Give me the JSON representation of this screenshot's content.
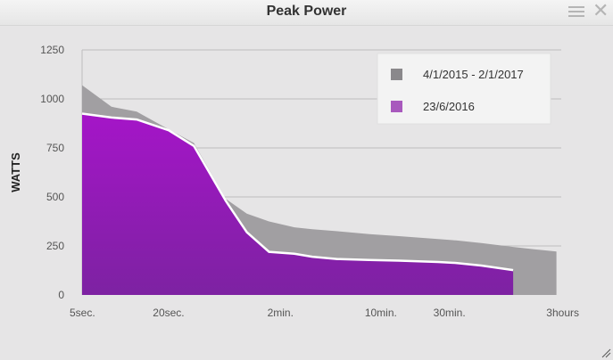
{
  "window": {
    "title": "Peak Power",
    "menu_icon": "hamburger-menu-icon",
    "close_icon": "close-icon",
    "close_glyph": "✕",
    "resize_icon": "resize-grip-icon"
  },
  "chart_data": {
    "type": "area",
    "title": "Peak Power",
    "xlabel": "",
    "ylabel": "WATTS",
    "ylim": [
      0,
      1250
    ],
    "yticks": [
      0,
      250,
      500,
      750,
      1000,
      1250
    ],
    "xscale": "log",
    "xlim_seconds": [
      5,
      10800
    ],
    "xticks": [
      {
        "label": "5sec.",
        "seconds": 5
      },
      {
        "label": "20sec.",
        "seconds": 20
      },
      {
        "label": "2min.",
        "seconds": 120
      },
      {
        "label": "10min.",
        "seconds": 600
      },
      {
        "label": "30min.",
        "seconds": 1800
      },
      {
        "label": "3hours",
        "seconds": 10800
      }
    ],
    "grid": true,
    "legend_position": "top-right",
    "series": [
      {
        "name": "4/1/2015 - 2/1/2017",
        "color": "#a19fa2",
        "x_seconds": [
          5,
          8,
          12,
          20,
          30,
          50,
          70,
          100,
          150,
          200,
          300,
          500,
          800,
          1500,
          2000,
          3000,
          5000,
          7000,
          10000
        ],
        "values": [
          1070,
          960,
          935,
          845,
          775,
          490,
          415,
          375,
          345,
          335,
          325,
          310,
          300,
          285,
          278,
          265,
          245,
          233,
          222
        ]
      },
      {
        "name": "23/6/2016",
        "color": "#9a14c0",
        "x_seconds": [
          5,
          8,
          12,
          20,
          30,
          50,
          70,
          100,
          150,
          200,
          300,
          500,
          800,
          1500,
          2000,
          3000,
          5000
        ],
        "values": [
          925,
          905,
          895,
          840,
          760,
          480,
          320,
          220,
          210,
          195,
          183,
          178,
          175,
          168,
          163,
          150,
          127
        ]
      }
    ]
  }
}
